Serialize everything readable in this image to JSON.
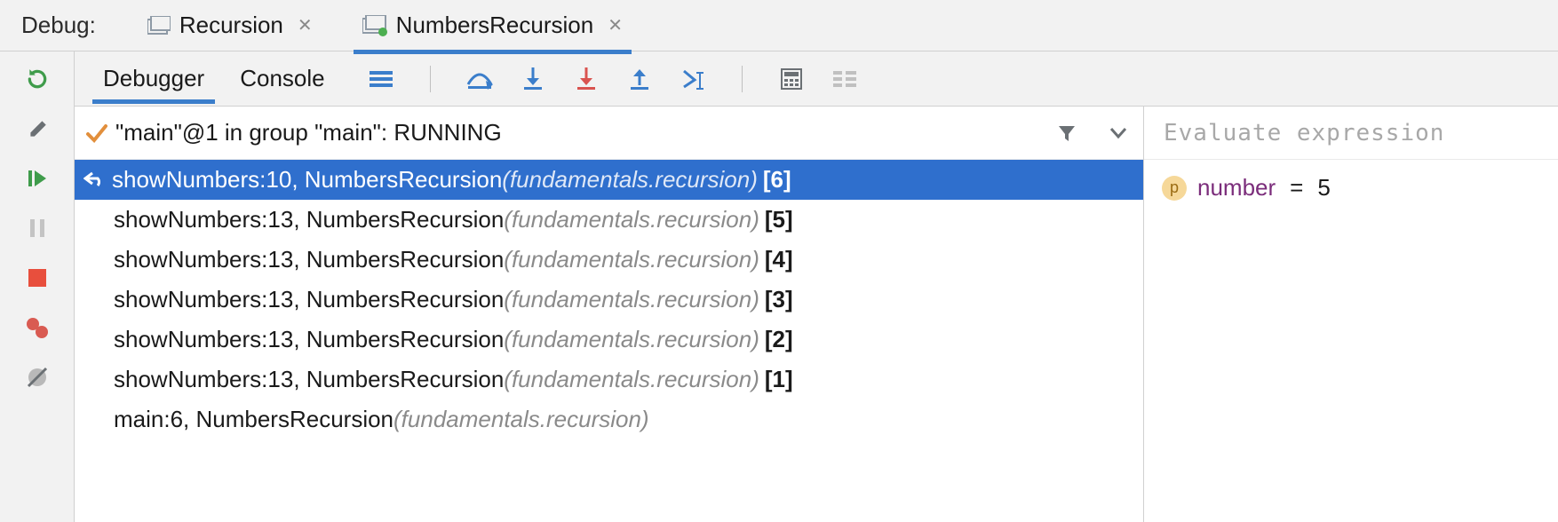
{
  "colors": {
    "accent": "#3b7ecb",
    "selection": "#2f6fcd",
    "panel_bg": "#f2f2f2",
    "content_bg": "#ffffff",
    "border": "#d0d0d0",
    "muted_text": "#8a8a8a",
    "var_name": "#7b2d7b"
  },
  "topbar": {
    "label": "Debug:",
    "tabs": [
      {
        "label": "Recursion",
        "active": false
      },
      {
        "label": "NumbersRecursion",
        "active": true
      }
    ]
  },
  "toolbar": {
    "tabs": {
      "debugger": "Debugger",
      "console": "Console"
    },
    "icons": [
      "threads-icon",
      "step-over-icon",
      "step-into-icon",
      "force-step-into-icon",
      "step-out-icon",
      "run-to-cursor-icon",
      "evaluate-icon",
      "trace-icon"
    ]
  },
  "thread": {
    "status_text": "\"main\"@1 in group \"main\": RUNNING"
  },
  "frames": [
    {
      "method": "showNumbers",
      "line": 10,
      "class": "NumbersRecursion",
      "package": "fundamentals.recursion",
      "index": 6,
      "selected": true,
      "dropframe": true
    },
    {
      "method": "showNumbers",
      "line": 13,
      "class": "NumbersRecursion",
      "package": "fundamentals.recursion",
      "index": 5
    },
    {
      "method": "showNumbers",
      "line": 13,
      "class": "NumbersRecursion",
      "package": "fundamentals.recursion",
      "index": 4
    },
    {
      "method": "showNumbers",
      "line": 13,
      "class": "NumbersRecursion",
      "package": "fundamentals.recursion",
      "index": 3
    },
    {
      "method": "showNumbers",
      "line": 13,
      "class": "NumbersRecursion",
      "package": "fundamentals.recursion",
      "index": 2
    },
    {
      "method": "showNumbers",
      "line": 13,
      "class": "NumbersRecursion",
      "package": "fundamentals.recursion",
      "index": 1
    },
    {
      "method": "main",
      "line": 6,
      "class": "NumbersRecursion",
      "package": "fundamentals.recursion",
      "index": null
    }
  ],
  "variables": {
    "placeholder": "Evaluate expression",
    "items": [
      {
        "kind": "p",
        "name": "number",
        "value": "5"
      }
    ]
  },
  "gutter_icons": [
    "rerun-icon",
    "settings-icon",
    "resume-icon",
    "pause-icon",
    "stop-icon",
    "breakpoints-icon",
    "mute-breakpoints-icon"
  ]
}
